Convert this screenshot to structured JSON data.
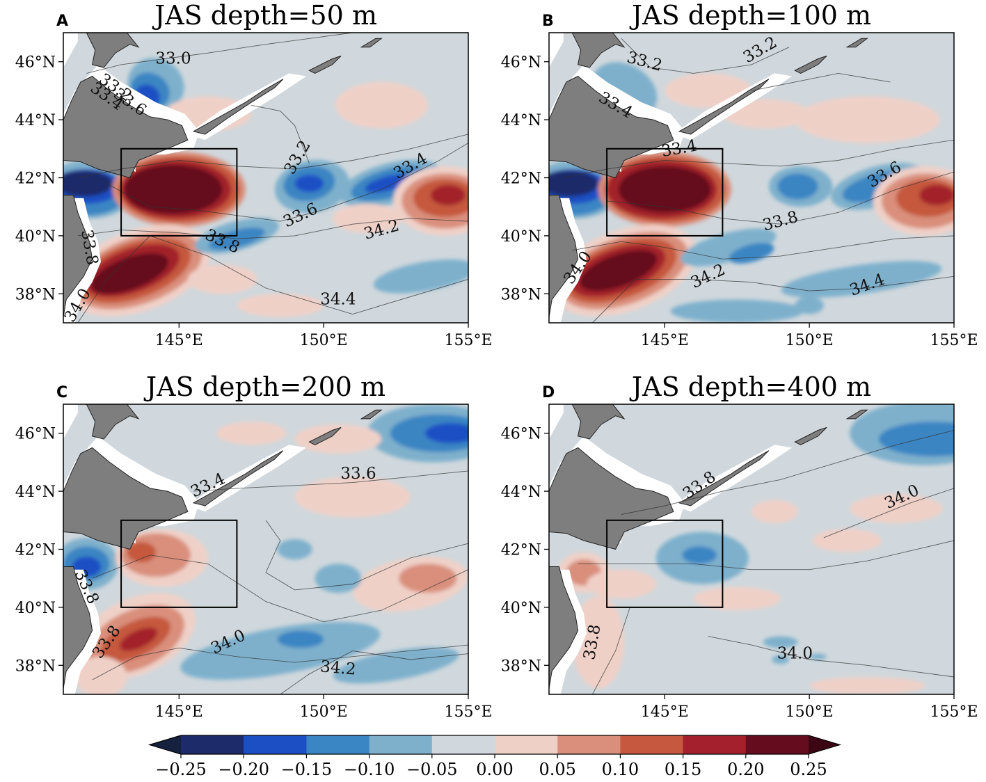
{
  "figure": {
    "colorbar": {
      "ticks": [
        "−0.25",
        "−0.20",
        "−0.15",
        "−0.10",
        "−0.05",
        "0.00",
        "0.05",
        "0.10",
        "0.15",
        "0.20",
        "0.25"
      ],
      "colors": [
        "#1e2b6a",
        "#1d4fc4",
        "#3a85c3",
        "#7eb0cc",
        "#d0d8dd",
        "#efd0c7",
        "#d98f7b",
        "#c5583e",
        "#a3202c",
        "#650d1e"
      ],
      "extend_low": "#16213f",
      "extend_high": "#3d0614"
    }
  },
  "chart_data": [
    {
      "type": "contour_map",
      "panel": "A",
      "title": "JAS depth=50 m",
      "xticks": [
        "145°E",
        "150°E",
        "155°E"
      ],
      "yticks": [
        "46°N",
        "44°N",
        "42°N",
        "40°N",
        "38°N"
      ],
      "xlim": [
        141,
        155
      ],
      "ylim": [
        37,
        47
      ],
      "box": {
        "lon": [
          143,
          147
        ],
        "lat": [
          40,
          43
        ]
      },
      "contour_labels": [
        {
          "text": "33.0",
          "lon": 144.8,
          "lat": 46.1,
          "rot": 0
        },
        {
          "text": "33.2",
          "lon": 142.8,
          "lat": 45.1,
          "rot": 35
        },
        {
          "text": "33.4",
          "lon": 142.5,
          "lat": 44.8,
          "rot": 35
        },
        {
          "text": "33.6",
          "lon": 143.3,
          "lat": 44.6,
          "rot": 35
        },
        {
          "text": "33.2",
          "lon": 149.1,
          "lat": 42.7,
          "rot": -60
        },
        {
          "text": "33.4",
          "lon": 153.0,
          "lat": 42.4,
          "rot": -30
        },
        {
          "text": "33.6",
          "lon": 149.2,
          "lat": 40.7,
          "rot": -25
        },
        {
          "text": "34.2",
          "lon": 152.0,
          "lat": 40.2,
          "rot": -15
        },
        {
          "text": "33.8",
          "lon": 146.5,
          "lat": 39.8,
          "rot": 25
        },
        {
          "text": "33.8",
          "lon": 141.9,
          "lat": 39.6,
          "rot": 80
        },
        {
          "text": "34.0",
          "lon": 141.5,
          "lat": 37.6,
          "rot": -60
        },
        {
          "text": "34.4",
          "lon": 150.5,
          "lat": 37.8,
          "rot": 0
        }
      ]
    },
    {
      "type": "contour_map",
      "panel": "B",
      "title": "JAS depth=100 m",
      "xticks": [
        "145°E",
        "150°E",
        "155°E"
      ],
      "yticks": [
        "46°N",
        "44°N",
        "42°N",
        "40°N",
        "38°N"
      ],
      "xlim": [
        141,
        155
      ],
      "ylim": [
        37,
        47
      ],
      "box": {
        "lon": [
          143,
          147
        ],
        "lat": [
          40,
          43
        ]
      },
      "contour_labels": [
        {
          "text": "33.2",
          "lon": 144.3,
          "lat": 46.0,
          "rot": 15
        },
        {
          "text": "33.2",
          "lon": 148.3,
          "lat": 46.4,
          "rot": -30
        },
        {
          "text": "33.4",
          "lon": 143.3,
          "lat": 44.5,
          "rot": 30
        },
        {
          "text": "33.4",
          "lon": 145.5,
          "lat": 43.0,
          "rot": -10
        },
        {
          "text": "33.6",
          "lon": 152.6,
          "lat": 42.1,
          "rot": -30
        },
        {
          "text": "33.8",
          "lon": 149.0,
          "lat": 40.5,
          "rot": -15
        },
        {
          "text": "34.0",
          "lon": 142.0,
          "lat": 38.9,
          "rot": -55
        },
        {
          "text": "34.2",
          "lon": 146.5,
          "lat": 38.6,
          "rot": -25
        },
        {
          "text": "34.4",
          "lon": 152.0,
          "lat": 38.3,
          "rot": -20
        }
      ]
    },
    {
      "type": "contour_map",
      "panel": "C",
      "title": "JAS depth=200 m",
      "xticks": [
        "145°E",
        "150°E",
        "155°E"
      ],
      "yticks": [
        "46°N",
        "44°N",
        "42°N",
        "40°N",
        "38°N"
      ],
      "xlim": [
        141,
        155
      ],
      "ylim": [
        37,
        47
      ],
      "box": {
        "lon": [
          143,
          147
        ],
        "lat": [
          40,
          43
        ]
      },
      "contour_labels": [
        {
          "text": "33.4",
          "lon": 146.0,
          "lat": 44.2,
          "rot": -25
        },
        {
          "text": "33.6",
          "lon": 151.2,
          "lat": 44.6,
          "rot": 0
        },
        {
          "text": "33.8",
          "lon": 141.8,
          "lat": 40.7,
          "rot": 65
        },
        {
          "text": "33.8",
          "lon": 142.5,
          "lat": 38.8,
          "rot": -55
        },
        {
          "text": "34.0",
          "lon": 146.7,
          "lat": 38.8,
          "rot": -25
        },
        {
          "text": "34.2",
          "lon": 150.5,
          "lat": 37.9,
          "rot": 5
        }
      ]
    },
    {
      "type": "contour_map",
      "panel": "D",
      "title": "JAS depth=400 m",
      "xticks": [
        "145°E",
        "150°E",
        "155°E"
      ],
      "yticks": [
        "46°N",
        "44°N",
        "42°N",
        "40°N",
        "38°N"
      ],
      "xlim": [
        141,
        155
      ],
      "ylim": [
        37,
        47
      ],
      "box": {
        "lon": [
          143,
          147
        ],
        "lat": [
          40,
          43
        ]
      },
      "contour_labels": [
        {
          "text": "33.8",
          "lon": 146.2,
          "lat": 44.2,
          "rot": -35
        },
        {
          "text": "34.0",
          "lon": 153.2,
          "lat": 43.8,
          "rot": -25
        },
        {
          "text": "33.8",
          "lon": 142.5,
          "lat": 38.8,
          "rot": -80
        },
        {
          "text": "34.0",
          "lon": 149.5,
          "lat": 38.4,
          "rot": 0
        }
      ]
    }
  ]
}
